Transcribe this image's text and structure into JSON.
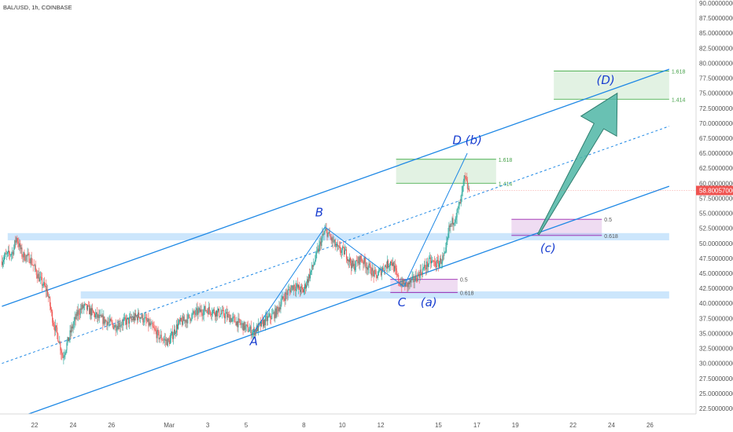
{
  "chart_data": {
    "type": "candlestick",
    "title": "BAL/USD, 1h, COINBASE",
    "last_price_label": "58.80057000",
    "y_ticks": [
      "90.00000000",
      "87.50000000",
      "85.00000000",
      "82.50000000",
      "80.00000000",
      "77.50000000",
      "75.00000000",
      "72.50000000",
      "70.00000000",
      "67.50000000",
      "65.00000000",
      "62.50000000",
      "60.00000000",
      "57.50000000",
      "55.00000000",
      "52.50000000",
      "50.00000000",
      "47.50000000",
      "45.00000000",
      "42.50000000",
      "40.00000000",
      "37.50000000",
      "35.00000000",
      "32.50000000",
      "30.00000000",
      "27.50000000",
      "25.00000000",
      "22.50000000"
    ],
    "y_range": [
      22.5,
      90
    ],
    "x_ticks": [
      {
        "label": "22",
        "day": 0
      },
      {
        "label": "24",
        "day": 2
      },
      {
        "label": "26",
        "day": 4
      },
      {
        "label": "Mar",
        "day": 7
      },
      {
        "label": "3",
        "day": 9
      },
      {
        "label": "5",
        "day": 11
      },
      {
        "label": "8",
        "day": 14
      },
      {
        "label": "10",
        "day": 16
      },
      {
        "label": "12",
        "day": 18
      },
      {
        "label": "15",
        "day": 21
      },
      {
        "label": "17",
        "day": 23
      },
      {
        "label": "19",
        "day": 25
      },
      {
        "label": "22",
        "day": 28
      },
      {
        "label": "24",
        "day": 30
      },
      {
        "label": "26",
        "day": 32
      }
    ],
    "price_path_anchors": [
      [
        -1.7,
        47
      ],
      [
        -1.5,
        47.8
      ],
      [
        -1.1,
        48.5
      ],
      [
        -0.9,
        51
      ],
      [
        -0.6,
        48
      ],
      [
        -0.2,
        47.5
      ],
      [
        0.3,
        44
      ],
      [
        0.7,
        42
      ],
      [
        1.0,
        37
      ],
      [
        1.3,
        34
      ],
      [
        1.5,
        31
      ],
      [
        1.7,
        33
      ],
      [
        2.0,
        36
      ],
      [
        2.3,
        38.5
      ],
      [
        2.6,
        39.5
      ],
      [
        3.0,
        38.5
      ],
      [
        3.4,
        37.5
      ],
      [
        3.8,
        37
      ],
      [
        4.2,
        36.2
      ],
      [
        4.6,
        36.8
      ],
      [
        5.0,
        37.2
      ],
      [
        5.5,
        38
      ],
      [
        6.0,
        36.5
      ],
      [
        6.5,
        34.5
      ],
      [
        7.0,
        33.5
      ],
      [
        7.5,
        36.5
      ],
      [
        8.0,
        37.5
      ],
      [
        8.5,
        38.5
      ],
      [
        9.0,
        39
      ],
      [
        9.5,
        38.5
      ],
      [
        10.0,
        38
      ],
      [
        10.5,
        37
      ],
      [
        11.0,
        36
      ],
      [
        11.4,
        35.2
      ],
      [
        12.0,
        37
      ],
      [
        12.6,
        38.5
      ],
      [
        13.0,
        41
      ],
      [
        13.5,
        43
      ],
      [
        14.0,
        42
      ],
      [
        14.5,
        46
      ],
      [
        15.0,
        51
      ],
      [
        15.2,
        52.2
      ],
      [
        15.4,
        51
      ],
      [
        15.8,
        49
      ],
      [
        16.2,
        48.5
      ],
      [
        16.6,
        46
      ],
      [
        17.0,
        47.5
      ],
      [
        17.4,
        46
      ],
      [
        17.8,
        44.5
      ],
      [
        18.2,
        46
      ],
      [
        18.6,
        47
      ],
      [
        19.0,
        43.5
      ],
      [
        19.4,
        43
      ],
      [
        19.8,
        44
      ],
      [
        20.2,
        45.5
      ],
      [
        20.6,
        47
      ],
      [
        21.0,
        46.5
      ],
      [
        21.4,
        48
      ],
      [
        21.6,
        52.5
      ],
      [
        22.0,
        55
      ],
      [
        22.2,
        57
      ],
      [
        22.4,
        61
      ],
      [
        22.6,
        58.8
      ]
    ],
    "trendlines": {
      "channel_upper": {
        "points": [
          [
            -1.7,
            39.5
          ],
          [
            33.0,
            79.0
          ]
        ]
      },
      "channel_mid": {
        "points": [
          [
            -1.7,
            30.0
          ],
          [
            33.0,
            69.5
          ]
        ]
      },
      "channel_lower": {
        "points": [
          [
            -1.7,
            20.0
          ],
          [
            33.0,
            59.5
          ]
        ]
      }
    },
    "support_zones": [
      {
        "x_from": -1.4,
        "x_to": 33.0,
        "y_from": 50.5,
        "y_to": 51.7
      },
      {
        "x_from": 2.4,
        "x_to": 33.0,
        "y_from": 40.8,
        "y_to": 42.0
      }
    ],
    "wave_path": [
      [
        11.4,
        35.2
      ],
      [
        15.1,
        52.7
      ],
      [
        19.2,
        42.8
      ],
      [
        22.5,
        65
      ]
    ],
    "wave_labels": [
      {
        "text": "A",
        "day": 11.4,
        "price": 33.0
      },
      {
        "text": "B",
        "day": 14.8,
        "price": 54.5
      },
      {
        "text": "C",
        "day": 19.1,
        "price": 39.5
      },
      {
        "text": "(a)",
        "day": 20.5,
        "price": 39.5
      },
      {
        "text": "D (b)",
        "day": 22.5,
        "price": 66.5
      },
      {
        "text": "(c)",
        "day": 26.7,
        "price": 48.5
      },
      {
        "text": "(D)",
        "day": 29.7,
        "price": 76.5
      }
    ],
    "fib_zones": [
      {
        "name": "upper",
        "x_from": 27.0,
        "x_to": 33.0,
        "y_from": 74.0,
        "y_to": 78.7,
        "color": "#4caf50",
        "label_top": "1.618",
        "label_bottom": "1.414"
      },
      {
        "name": "middle",
        "x_from": 18.8,
        "x_to": 24.0,
        "y_from": 60.0,
        "y_to": 64.0,
        "color": "#4caf50",
        "label_top": "1.618",
        "label_bottom": "1.414"
      },
      {
        "name": "lower-right",
        "x_from": 24.8,
        "x_to": 29.5,
        "y_from": 51.3,
        "y_to": 54.0,
        "color": "#9c27b0",
        "label_top": "0.5",
        "label_bottom": "0.618"
      },
      {
        "name": "lower-left",
        "x_from": 18.5,
        "x_to": 22.0,
        "y_from": 41.8,
        "y_to": 44.0,
        "color": "#9c27b0",
        "label_top": "0.5",
        "label_bottom": "0.618"
      }
    ],
    "projection_arrow": {
      "from": [
        26.2,
        51.5
      ],
      "to": [
        30.3,
        75.0
      ],
      "color": "#4fb6a6"
    },
    "colors": {
      "up": "#26a69a",
      "down": "#ef5350",
      "channel": "#1e88e5",
      "zone": "#bbdefb",
      "label": "#1a3fd0",
      "price_badge": "#ef5350"
    }
  }
}
